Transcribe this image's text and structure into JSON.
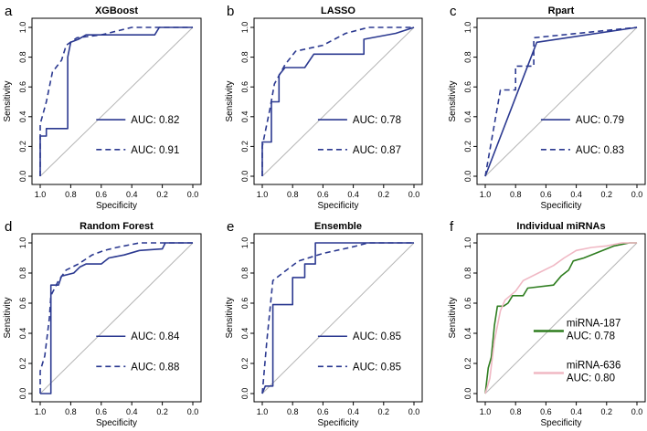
{
  "chart_data": [
    {
      "type": "line",
      "letter": "a",
      "title": "XGBoost",
      "xlabel": "Specificity",
      "ylabel": "Sensitivity",
      "xlim": [
        1.0,
        0.0
      ],
      "ylim": [
        0.0,
        1.0
      ],
      "xticks": [
        "1.0",
        "0.8",
        "0.6",
        "0.4",
        "0.2",
        "0.0"
      ],
      "yticks": [
        "0.0",
        "0.2",
        "0.4",
        "0.6",
        "0.8",
        "1.0"
      ],
      "legend_position": "bottom-right",
      "series": [
        {
          "name": "AUC: 0.82",
          "style": "solid",
          "color": "#2b3990",
          "points": [
            [
              1,
              0
            ],
            [
              1,
              0.27
            ],
            [
              0.96,
              0.27
            ],
            [
              0.96,
              0.32
            ],
            [
              0.82,
              0.32
            ],
            [
              0.82,
              0.8
            ],
            [
              0.8,
              0.9
            ],
            [
              0.75,
              0.92
            ],
            [
              0.7,
              0.95
            ],
            [
              0.25,
              0.95
            ],
            [
              0.22,
              1
            ],
            [
              0,
              1
            ]
          ]
        },
        {
          "name": "AUC: 0.91",
          "style": "dashed",
          "color": "#2b3990",
          "points": [
            [
              1,
              0
            ],
            [
              1,
              0.35
            ],
            [
              0.96,
              0.5
            ],
            [
              0.92,
              0.7
            ],
            [
              0.86,
              0.78
            ],
            [
              0.83,
              0.88
            ],
            [
              0.76,
              0.93
            ],
            [
              0.6,
              0.95
            ],
            [
              0.4,
              1
            ],
            [
              0,
              1
            ]
          ]
        }
      ]
    },
    {
      "type": "line",
      "letter": "b",
      "title": "LASSO",
      "xlabel": "Specificity",
      "ylabel": "Sensitivity",
      "xlim": [
        1.0,
        0.0
      ],
      "ylim": [
        0.0,
        1.0
      ],
      "xticks": [
        "1.0",
        "0.8",
        "0.6",
        "0.4",
        "0.2",
        "0.0"
      ],
      "yticks": [
        "0.0",
        "0.2",
        "0.4",
        "0.6",
        "0.8",
        "1.0"
      ],
      "legend_position": "bottom-right",
      "series": [
        {
          "name": "AUC: 0.78",
          "style": "solid",
          "color": "#2b3990",
          "points": [
            [
              1,
              0
            ],
            [
              1,
              0.23
            ],
            [
              0.94,
              0.23
            ],
            [
              0.94,
              0.5
            ],
            [
              0.89,
              0.5
            ],
            [
              0.89,
              0.68
            ],
            [
              0.85,
              0.73
            ],
            [
              0.72,
              0.73
            ],
            [
              0.66,
              0.82
            ],
            [
              0.33,
              0.82
            ],
            [
              0.33,
              0.92
            ],
            [
              0.12,
              0.96
            ],
            [
              0,
              1
            ]
          ]
        },
        {
          "name": "AUC: 0.87",
          "style": "dashed",
          "color": "#2b3990",
          "points": [
            [
              1,
              0
            ],
            [
              1,
              0.2
            ],
            [
              0.95,
              0.45
            ],
            [
              0.92,
              0.62
            ],
            [
              0.85,
              0.75
            ],
            [
              0.78,
              0.84
            ],
            [
              0.6,
              0.88
            ],
            [
              0.45,
              0.96
            ],
            [
              0.3,
              1
            ],
            [
              0,
              1
            ]
          ]
        }
      ]
    },
    {
      "type": "line",
      "letter": "c",
      "title": "Rpart",
      "xlabel": "Specificity",
      "ylabel": "Sensitivity",
      "xlim": [
        1.0,
        0.0
      ],
      "ylim": [
        0.0,
        1.0
      ],
      "xticks": [
        "1.0",
        "0.8",
        "0.6",
        "0.4",
        "0.2",
        "0.0"
      ],
      "yticks": [
        "0.0",
        "0.2",
        "0.4",
        "0.6",
        "0.8",
        "1.0"
      ],
      "legend_position": "bottom-right",
      "series": [
        {
          "name": "AUC: 0.79",
          "style": "solid",
          "color": "#2b3990",
          "points": [
            [
              1,
              0
            ],
            [
              0.66,
              0.9
            ],
            [
              0,
              1
            ]
          ]
        },
        {
          "name": "AUC: 0.83",
          "style": "dashed",
          "color": "#2b3990",
          "points": [
            [
              1,
              0
            ],
            [
              0.9,
              0.58
            ],
            [
              0.8,
              0.58
            ],
            [
              0.8,
              0.74
            ],
            [
              0.68,
              0.74
            ],
            [
              0.68,
              0.93
            ],
            [
              0,
              1
            ]
          ]
        }
      ]
    },
    {
      "type": "line",
      "letter": "d",
      "title": "Random Forest",
      "xlabel": "Specificity",
      "ylabel": "Sensitivity",
      "xlim": [
        1.0,
        0.0
      ],
      "ylim": [
        0.0,
        1.0
      ],
      "xticks": [
        "1.0",
        "0.8",
        "0.6",
        "0.4",
        "0.2",
        "0.0"
      ],
      "yticks": [
        "0.0",
        "0.2",
        "0.4",
        "0.6",
        "0.8",
        "1.0"
      ],
      "legend_position": "bottom-right",
      "series": [
        {
          "name": "AUC: 0.84",
          "style": "solid",
          "color": "#2b3990",
          "points": [
            [
              1,
              0
            ],
            [
              0.93,
              0
            ],
            [
              0.93,
              0.72
            ],
            [
              0.88,
              0.72
            ],
            [
              0.86,
              0.78
            ],
            [
              0.78,
              0.8
            ],
            [
              0.74,
              0.84
            ],
            [
              0.7,
              0.86
            ],
            [
              0.6,
              0.86
            ],
            [
              0.55,
              0.9
            ],
            [
              0.45,
              0.92
            ],
            [
              0.35,
              0.95
            ],
            [
              0.2,
              0.96
            ],
            [
              0.18,
              1
            ],
            [
              0,
              1
            ]
          ]
        },
        {
          "name": "AUC: 0.88",
          "style": "dashed",
          "color": "#2b3990",
          "points": [
            [
              1,
              0
            ],
            [
              1,
              0.15
            ],
            [
              0.97,
              0.25
            ],
            [
              0.94,
              0.5
            ],
            [
              0.93,
              0.65
            ],
            [
              0.88,
              0.75
            ],
            [
              0.83,
              0.82
            ],
            [
              0.75,
              0.86
            ],
            [
              0.66,
              0.92
            ],
            [
              0.58,
              0.95
            ],
            [
              0.5,
              0.97
            ],
            [
              0.35,
              1
            ],
            [
              0,
              1
            ]
          ]
        }
      ]
    },
    {
      "type": "line",
      "letter": "e",
      "title": "Ensemble",
      "xlabel": "Specificity",
      "ylabel": "Sensitivity",
      "xlim": [
        1.0,
        0.0
      ],
      "ylim": [
        0.0,
        1.0
      ],
      "xticks": [
        "1.0",
        "0.8",
        "0.6",
        "0.4",
        "0.2",
        "0.0"
      ],
      "yticks": [
        "0.0",
        "0.2",
        "0.4",
        "0.6",
        "0.8",
        "1.0"
      ],
      "legend_position": "bottom-right",
      "series": [
        {
          "name": "AUC: 0.85",
          "style": "solid",
          "color": "#2b3990",
          "points": [
            [
              1,
              0
            ],
            [
              0.98,
              0.05
            ],
            [
              0.93,
              0.05
            ],
            [
              0.93,
              0.59
            ],
            [
              0.8,
              0.59
            ],
            [
              0.8,
              0.77
            ],
            [
              0.72,
              0.77
            ],
            [
              0.72,
              0.86
            ],
            [
              0.65,
              0.86
            ],
            [
              0.65,
              1
            ],
            [
              0,
              1
            ]
          ]
        },
        {
          "name": "AUC: 0.85",
          "style": "dashed",
          "color": "#2b3990",
          "points": [
            [
              1,
              0
            ],
            [
              0.97,
              0.35
            ],
            [
              0.95,
              0.55
            ],
            [
              0.93,
              0.75
            ],
            [
              0.84,
              0.82
            ],
            [
              0.76,
              0.88
            ],
            [
              0.6,
              0.93
            ],
            [
              0.42,
              0.97
            ],
            [
              0.3,
              1
            ],
            [
              0,
              1
            ]
          ]
        }
      ]
    },
    {
      "type": "line",
      "letter": "f",
      "title": "Individual miRNAs",
      "xlabel": "Specificity",
      "ylabel": "Sensitivity",
      "xlim": [
        1.0,
        0.0
      ],
      "ylim": [
        0.0,
        1.0
      ],
      "xticks": [
        "1.0",
        "0.8",
        "0.6",
        "0.4",
        "0.2",
        "0.0"
      ],
      "yticks": [
        "0.0",
        "0.2",
        "0.4",
        "0.6",
        "0.8",
        "1.0"
      ],
      "legend_position": "bottom-right",
      "series": [
        {
          "name": "miRNA-187",
          "auc_label": "AUC: 0.78",
          "style": "solid",
          "color": "#2e7d1f",
          "points": [
            [
              1,
              0
            ],
            [
              0.98,
              0.17
            ],
            [
              0.96,
              0.24
            ],
            [
              0.94,
              0.45
            ],
            [
              0.92,
              0.58
            ],
            [
              0.88,
              0.58
            ],
            [
              0.85,
              0.6
            ],
            [
              0.82,
              0.65
            ],
            [
              0.75,
              0.65
            ],
            [
              0.72,
              0.7
            ],
            [
              0.55,
              0.72
            ],
            [
              0.5,
              0.78
            ],
            [
              0.45,
              0.82
            ],
            [
              0.42,
              0.88
            ],
            [
              0.35,
              0.9
            ],
            [
              0.25,
              0.94
            ],
            [
              0.15,
              0.98
            ],
            [
              0.05,
              1
            ],
            [
              0,
              1
            ]
          ]
        },
        {
          "name": "miRNA-636",
          "auc_label": "AUC: 0.80",
          "style": "solid",
          "color": "#f0b8c4",
          "points": [
            [
              1,
              0
            ],
            [
              0.97,
              0.1
            ],
            [
              0.94,
              0.35
            ],
            [
              0.92,
              0.45
            ],
            [
              0.9,
              0.55
            ],
            [
              0.87,
              0.62
            ],
            [
              0.8,
              0.68
            ],
            [
              0.75,
              0.75
            ],
            [
              0.65,
              0.8
            ],
            [
              0.55,
              0.85
            ],
            [
              0.48,
              0.9
            ],
            [
              0.4,
              0.95
            ],
            [
              0.3,
              0.97
            ],
            [
              0.2,
              0.98
            ],
            [
              0.1,
              1
            ],
            [
              0,
              1
            ]
          ]
        }
      ]
    }
  ]
}
